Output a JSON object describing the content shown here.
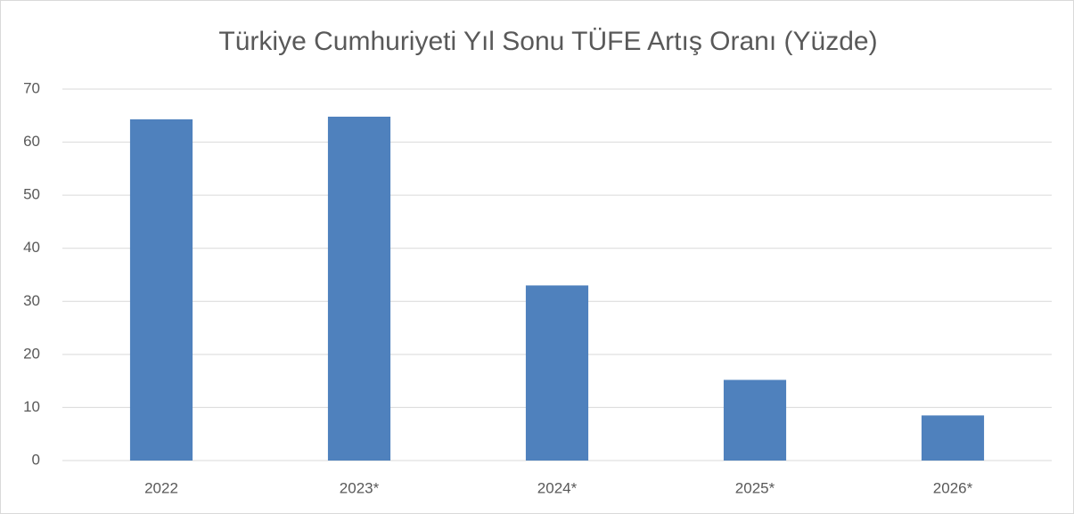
{
  "chart_data": {
    "type": "bar",
    "title": "Türkiye Cumhuriyeti Yıl Sonu TÜFE Artış Oranı (Yüzde)",
    "categories": [
      "2022",
      "2023*",
      "2024*",
      "2025*",
      "2026*"
    ],
    "values": [
      64.3,
      64.8,
      33,
      15.2,
      8.5
    ],
    "color": "#4f81bd",
    "ylim": [
      0,
      70
    ],
    "yticks": [
      0,
      10,
      20,
      30,
      40,
      50,
      60,
      70
    ],
    "grid": true
  }
}
